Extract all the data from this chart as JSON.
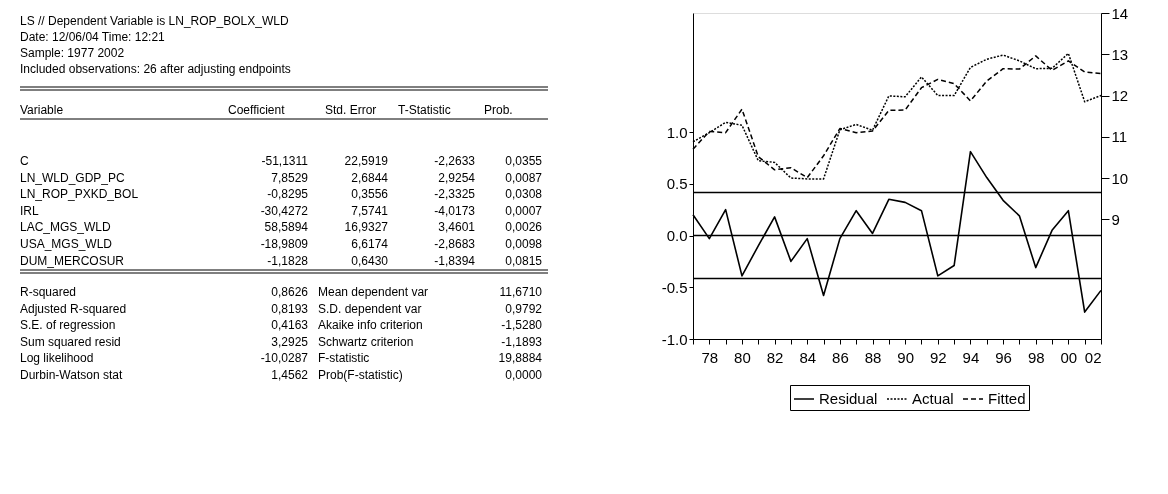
{
  "chart_data": [
    {
      "type": "other",
      "annotations": [
        "LS // Dependent Variable is LN_ROP_BOLX_WLD",
        "Date: 12/06/04   Time: 12:21",
        "Sample: 1977 2002",
        "Included observations: 26 after adjusting endpoints",
        "Variable",
        "Coefficient",
        "Std. Error",
        "T-Statistic",
        "Prob.",
        "C",
        "-51,1311",
        "22,5919",
        "-2,2633",
        "0,0355",
        "LN_WLD_GDP_PC",
        "7,8529",
        "2,6844",
        "2,9254",
        "0,0087",
        "LN_ROP_PXKD_BOL",
        "-0,8295",
        "0,3556",
        "-2,3325",
        "0,0308",
        "IRL",
        "-30,4272",
        "7,5741",
        "-4,0173",
        "0,0007",
        "LAC_MGS_WLD",
        "58,5894",
        "16,9327",
        "3,4601",
        "0,0026",
        "USA_MGS_WLD",
        "-18,9809",
        "6,6174",
        "-2,8683",
        "0,0098",
        "DUM_MERCOSUR",
        "-1,1828",
        "0,6430",
        "-1,8394",
        "0,0815",
        "R-squared",
        "0,8626",
        "Mean dependent var",
        "11,6710",
        "Adjusted R-squared",
        "0,8193",
        "S.D. dependent var",
        "0,9792",
        "S.E. of regression",
        "0,4163",
        "Akaike info criterion",
        "-1,5280",
        "Sum squared resid",
        "3,2925",
        "Schwartz criterion",
        "-1,1893",
        "Log likelihood",
        "-10,0287",
        "F-statistic",
        "19,8884",
        "Durbin-Watson stat",
        "1,4562",
        "Prob(F-statistic)",
        "0,0000"
      ]
    },
    {
      "type": "line",
      "x": [
        1977,
        1978,
        1979,
        1980,
        1981,
        1982,
        1983,
        1984,
        1985,
        1986,
        1987,
        1988,
        1989,
        1990,
        1991,
        1992,
        1993,
        1994,
        1995,
        1996,
        1997,
        1998,
        1999,
        2000,
        2001,
        2002
      ],
      "xlim": [
        1977,
        2002
      ],
      "xticks": [
        {
          "value": 1977,
          "label": null
        },
        {
          "value": 1978,
          "label": "78"
        },
        {
          "value": 1979,
          "label": null
        },
        {
          "value": 1980,
          "label": "80"
        },
        {
          "value": 1981,
          "label": null
        },
        {
          "value": 1982,
          "label": "82"
        },
        {
          "value": 1983,
          "label": null
        },
        {
          "value": 1984,
          "label": "84"
        },
        {
          "value": 1985,
          "label": null
        },
        {
          "value": 1986,
          "label": "86"
        },
        {
          "value": 1987,
          "label": null
        },
        {
          "value": 1988,
          "label": "88"
        },
        {
          "value": 1989,
          "label": null
        },
        {
          "value": 1990,
          "label": "90"
        },
        {
          "value": 1991,
          "label": null
        },
        {
          "value": 1992,
          "label": "92"
        },
        {
          "value": 1993,
          "label": null
        },
        {
          "value": 1994,
          "label": "94"
        },
        {
          "value": 1995,
          "label": null
        },
        {
          "value": 1996,
          "label": "96"
        },
        {
          "value": 1997,
          "label": null
        },
        {
          "value": 1998,
          "label": "98"
        },
        {
          "value": 1999,
          "label": null
        },
        {
          "value": 2000,
          "label": "00"
        },
        {
          "value": 2001,
          "label": null
        },
        {
          "value": 2002,
          "label": "02"
        }
      ],
      "ylim": [
        -1.0,
        2.15
      ],
      "yticks": [
        {
          "value": -1.0,
          "label": "-1.0"
        },
        {
          "value": -0.5,
          "label": "-0.5"
        },
        {
          "value": 0,
          "label": "0.0"
        },
        {
          "value": 0.5,
          "label": "0.5"
        },
        {
          "value": 1.0,
          "label": "1.0"
        }
      ],
      "y2lim": [
        6.1,
        14
      ],
      "y2ticks": [
        9,
        10,
        11,
        12,
        13,
        14
      ],
      "series": [
        {
          "name": "Residual",
          "color": "#000000",
          "line_style": "solid",
          "axis": "y",
          "values": [
            0.2,
            -0.03,
            0.25,
            -0.39,
            -0.1,
            0.18,
            -0.25,
            -0.03,
            -0.58,
            -0.03,
            0.24,
            0.02,
            0.35,
            0.32,
            0.24,
            -0.39,
            -0.29,
            0.81,
            0.56,
            0.34,
            0.19,
            -0.31,
            0.05,
            0.24,
            -0.74,
            -0.53
          ]
        },
        {
          "name": "Actual",
          "color": "#000000",
          "line_style": "dotted",
          "axis": "y2",
          "values": [
            10.88,
            11.1,
            11.35,
            11.28,
            10.42,
            10.38,
            10.0,
            9.98,
            9.98,
            11.17,
            11.3,
            11.16,
            11.99,
            11.97,
            12.45,
            12.0,
            12.0,
            12.68,
            12.88,
            12.98,
            12.84,
            12.65,
            12.66,
            13.02,
            11.85,
            12.0
          ]
        },
        {
          "name": "Fitted",
          "color": "#000000",
          "line_style": "dashed",
          "axis": "y2",
          "values": [
            10.7,
            11.13,
            11.1,
            11.67,
            10.52,
            10.2,
            10.25,
            10.01,
            10.54,
            11.2,
            11.1,
            11.14,
            11.64,
            11.65,
            12.19,
            12.39,
            12.29,
            11.87,
            12.35,
            12.65,
            12.64,
            12.96,
            12.61,
            12.84,
            12.57,
            12.53
          ]
        }
      ],
      "ref_lines": [
        {
          "axis": "y",
          "value": 0
        },
        {
          "axis": "y",
          "value": 0.4163
        },
        {
          "axis": "y",
          "value": -0.4163
        }
      ],
      "legend": "bottom",
      "marker": "none"
    }
  ]
}
